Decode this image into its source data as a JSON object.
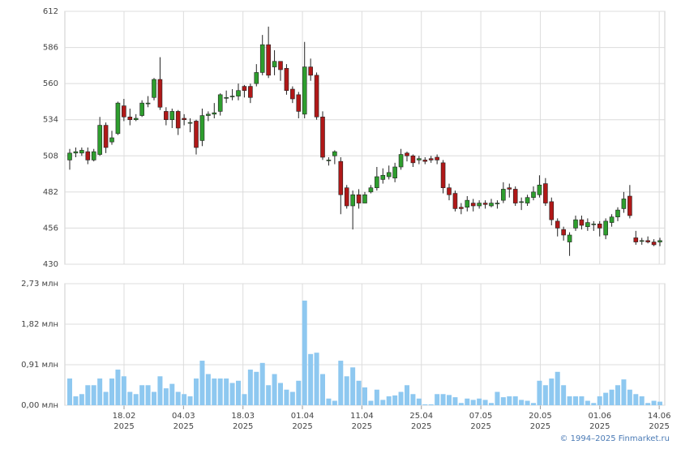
{
  "chart_data": [
    {
      "type": "candlestick",
      "up_color": "#2e9e2e",
      "down_color": "#b01818",
      "open": [
        505,
        510,
        510,
        511,
        505,
        509,
        530,
        518,
        524,
        544,
        536,
        534,
        537,
        546,
        550,
        563,
        540,
        534,
        540,
        535,
        532,
        533,
        519,
        537,
        538,
        540,
        550,
        551,
        551,
        558,
        558,
        560,
        568,
        588,
        572,
        576,
        571,
        556,
        552,
        538,
        572,
        566,
        536,
        505,
        508,
        504,
        485,
        472,
        480,
        474,
        482,
        485,
        491,
        493,
        492,
        500,
        510,
        508,
        505,
        505,
        506,
        507,
        503,
        485,
        481,
        471,
        471,
        474,
        472,
        474,
        472,
        474,
        476,
        485,
        484,
        475,
        474,
        478,
        480,
        488,
        475,
        461,
        455,
        446,
        456,
        462,
        457,
        459,
        459,
        451,
        460,
        464,
        470,
        479,
        449,
        447,
        447,
        446,
        446
      ],
      "high": [
        513,
        514,
        514,
        514,
        513,
        536,
        532,
        526,
        547,
        549,
        542,
        538,
        548,
        551,
        564,
        579,
        543,
        542,
        541,
        538,
        535,
        534,
        542,
        540,
        546,
        553,
        555,
        556,
        560,
        559,
        560,
        574,
        595,
        601,
        584,
        576,
        574,
        558,
        554,
        590,
        578,
        568,
        540,
        507,
        512,
        507,
        487,
        483,
        484,
        482,
        487,
        500,
        499,
        501,
        503,
        513,
        511,
        509,
        508,
        507,
        508,
        509,
        505,
        488,
        483,
        474,
        479,
        477,
        476,
        476,
        477,
        476,
        489,
        488,
        486,
        478,
        480,
        486,
        494,
        492,
        478,
        463,
        457,
        453,
        465,
        465,
        463,
        461,
        461,
        463,
        466,
        471,
        482,
        487,
        454,
        449,
        450,
        448,
        449
      ],
      "low": [
        498,
        507,
        508,
        502,
        504,
        508,
        510,
        516,
        523,
        533,
        530,
        533,
        536,
        543,
        548,
        541,
        530,
        528,
        523,
        530,
        525,
        509,
        515,
        533,
        535,
        537,
        546,
        548,
        548,
        550,
        546,
        558,
        566,
        564,
        566,
        562,
        552,
        546,
        535,
        535,
        562,
        534,
        505,
        501,
        502,
        466,
        470,
        455,
        470,
        475,
        481,
        483,
        488,
        491,
        489,
        498,
        504,
        500,
        502,
        502,
        503,
        502,
        481,
        476,
        468,
        466,
        468,
        468,
        470,
        470,
        471,
        470,
        474,
        478,
        472,
        469,
        472,
        476,
        478,
        472,
        458,
        450,
        447,
        436,
        454,
        455,
        454,
        454,
        450,
        448,
        457,
        461,
        467,
        463,
        444,
        444,
        445,
        443,
        443
      ],
      "close": [
        510,
        511,
        512,
        505,
        511,
        530,
        514,
        521,
        546,
        536,
        534,
        535,
        546,
        546,
        563,
        543,
        534,
        540,
        528,
        534,
        532,
        514,
        537,
        538,
        539,
        552,
        550,
        551,
        555,
        555,
        550,
        568,
        588,
        566,
        576,
        570,
        555,
        549,
        540,
        572,
        566,
        536,
        507,
        505,
        511,
        480,
        472,
        480,
        474,
        480,
        485,
        493,
        494,
        496,
        500,
        509,
        508,
        503,
        506,
        504,
        505,
        505,
        485,
        480,
        470,
        470,
        476,
        472,
        474,
        473,
        474,
        474,
        484,
        484,
        474,
        475,
        478,
        482,
        487,
        474,
        462,
        456,
        451,
        451,
        462,
        458,
        460,
        459,
        456,
        461,
        464,
        469,
        477,
        465,
        446,
        447,
        446,
        444,
        447
      ],
      "ylim": [
        430,
        612
      ],
      "yticks": [
        430,
        456,
        482,
        508,
        534,
        560,
        586,
        612
      ],
      "grid": true
    },
    {
      "type": "bar",
      "color": "#8ec8f0",
      "values": [
        0.6,
        0.2,
        0.25,
        0.45,
        0.45,
        0.6,
        0.3,
        0.6,
        0.8,
        0.65,
        0.3,
        0.25,
        0.45,
        0.45,
        0.3,
        0.65,
        0.38,
        0.48,
        0.3,
        0.25,
        0.2,
        0.6,
        1.0,
        0.7,
        0.6,
        0.6,
        0.6,
        0.5,
        0.55,
        0.25,
        0.8,
        0.75,
        0.95,
        0.45,
        0.7,
        0.5,
        0.35,
        0.3,
        0.55,
        2.35,
        1.15,
        1.18,
        0.7,
        0.15,
        0.1,
        1.0,
        0.65,
        0.85,
        0.55,
        0.4,
        0.1,
        0.35,
        0.12,
        0.2,
        0.22,
        0.3,
        0.45,
        0.25,
        0.15,
        0.02,
        0.02,
        0.25,
        0.25,
        0.23,
        0.18,
        0.05,
        0.15,
        0.12,
        0.15,
        0.12,
        0.05,
        0.3,
        0.18,
        0.2,
        0.2,
        0.12,
        0.1,
        0.05,
        0.55,
        0.45,
        0.6,
        0.75,
        0.45,
        0.2,
        0.2,
        0.2,
        0.1,
        0.05,
        0.2,
        0.28,
        0.35,
        0.45,
        0.58,
        0.35,
        0.25,
        0.2,
        0.05,
        0.1,
        0.08
      ],
      "ylim": [
        0,
        2.73
      ],
      "yticks": [
        {
          "value": 0,
          "label": "0,00 млн"
        },
        {
          "value": 0.91,
          "label": "0,91 млн"
        },
        {
          "value": 1.82,
          "label": "1,82 млн"
        },
        {
          "value": 2.73,
          "label": "2,73 млн"
        }
      ],
      "grid": true
    }
  ],
  "x_axis_labels": [
    [
      "18.02",
      "2025"
    ],
    [
      "04.03",
      "2025"
    ],
    [
      "18.03",
      "2025"
    ],
    [
      "01.04",
      "2025"
    ],
    [
      "11.04",
      "2025"
    ],
    [
      "25.04",
      "2025"
    ],
    [
      "07.05",
      "2025"
    ],
    [
      "20.05",
      "2025"
    ],
    [
      "01.06",
      "2025"
    ],
    [
      "14.06",
      "2025"
    ]
  ],
  "copyright": "© 1994–2025 Finmarket.ru"
}
